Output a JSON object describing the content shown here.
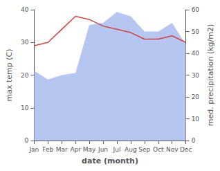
{
  "chart_data": {
    "type": "line",
    "categories": [
      "Jan",
      "Feb",
      "Mar",
      "Apr",
      "May",
      "Jun",
      "Jul",
      "Aug",
      "Sep",
      "Oct",
      "Nov",
      "Dec"
    ],
    "series": [
      {
        "type": "area",
        "axis": "y2",
        "color": "#aabbee",
        "values": [
          32,
          28,
          30,
          31,
          53,
          54,
          59,
          57,
          50,
          50,
          54,
          44
        ]
      },
      {
        "type": "line",
        "color": "#cc4444",
        "values": [
          29,
          30,
          34,
          38,
          37,
          35,
          34,
          33,
          31,
          31,
          32,
          30
        ]
      }
    ],
    "xlabel": "date (month)",
    "ylabel": "max temp (C)",
    "y2label": "med. precipitation (kg/m2)",
    "ylim": [
      0,
      40
    ],
    "yticks": [
      0,
      10,
      20,
      30,
      40
    ],
    "y2lim": [
      0,
      60
    ],
    "y2ticks": [
      0,
      10,
      20,
      30,
      40,
      50,
      60
    ],
    "grid": false
  }
}
